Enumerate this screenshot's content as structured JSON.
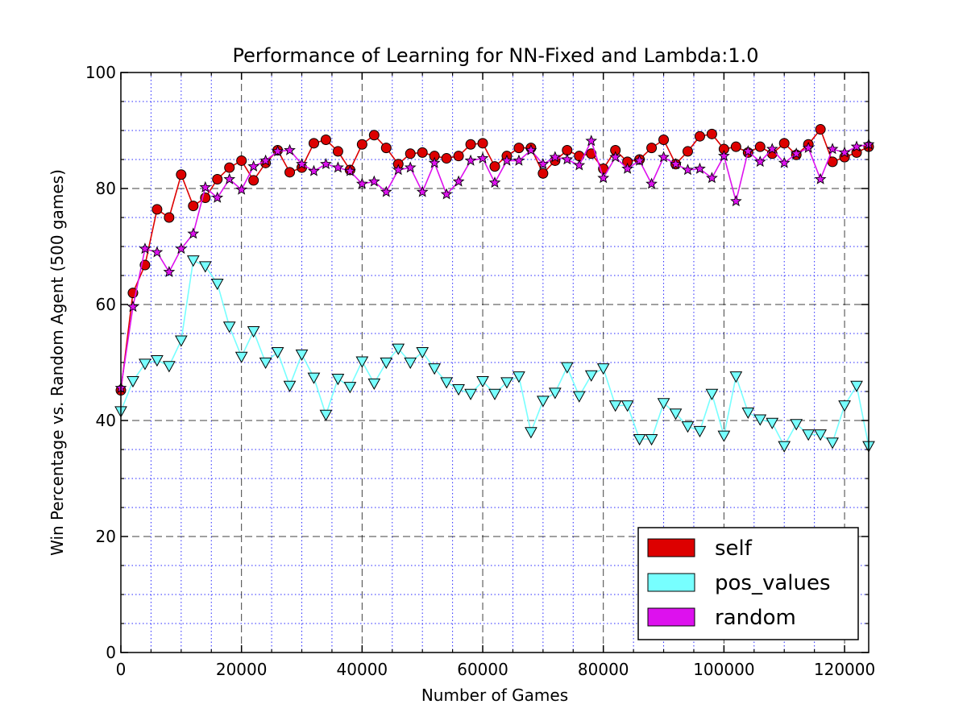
{
  "chart_data": {
    "type": "line",
    "title": "Performance of Learning for NN-Fixed and Lambda:1.0",
    "xlabel": "Number of Games",
    "ylabel": "Win Percentage vs. Random Agent (500 games)",
    "xlim": [
      0,
      124000
    ],
    "ylim": [
      0,
      100
    ],
    "xticks": [
      0,
      20000,
      40000,
      60000,
      80000,
      100000,
      120000
    ],
    "yticks": [
      0,
      20,
      40,
      60,
      80,
      100
    ],
    "xtick_labels": [
      "0",
      "20000",
      "40000",
      "60000",
      "80000",
      "100000",
      "120000"
    ],
    "ytick_labels": [
      "0",
      "20",
      "40",
      "60",
      "80",
      "100"
    ],
    "grid": true,
    "legend_position": "lower-right",
    "x": [
      0,
      2000,
      4000,
      6000,
      8000,
      10000,
      12000,
      14000,
      16000,
      18000,
      20000,
      22000,
      24000,
      26000,
      28000,
      30000,
      32000,
      34000,
      36000,
      38000,
      40000,
      42000,
      44000,
      46000,
      48000,
      50000,
      52000,
      54000,
      56000,
      58000,
      60000,
      62000,
      64000,
      66000,
      68000,
      70000,
      72000,
      74000,
      76000,
      78000,
      80000,
      82000,
      84000,
      86000,
      88000,
      90000,
      92000,
      94000,
      96000,
      98000,
      100000,
      102000,
      104000,
      106000,
      108000,
      110000,
      112000,
      114000,
      116000,
      118000,
      120000,
      122000,
      124000
    ],
    "series": [
      {
        "name": "self",
        "color": "#dd0000",
        "marker": "circle",
        "values": [
          45.2,
          62.0,
          66.8,
          76.4,
          75.0,
          82.4,
          77.0,
          78.4,
          81.6,
          83.6,
          84.8,
          81.4,
          84.4,
          86.6,
          82.8,
          83.6,
          87.8,
          88.4,
          86.4,
          83.2,
          87.6,
          89.2,
          87.0,
          84.2,
          86.0,
          86.2,
          85.6,
          85.2,
          85.6,
          87.6,
          87.8,
          83.8,
          85.6,
          87.0,
          87.0,
          82.6,
          84.8,
          86.6,
          85.6,
          86.0,
          83.4,
          86.6,
          84.6,
          85.0,
          87.0,
          88.4,
          84.2,
          86.4,
          89.0,
          89.4,
          86.8,
          87.2,
          86.2,
          87.2,
          86.0,
          87.8,
          85.8,
          87.6,
          90.2,
          84.6,
          85.4,
          86.2,
          87.2
        ]
      },
      {
        "name": "pos_values",
        "color": "#77ffff",
        "marker": "triangle-down",
        "values": [
          41.6,
          46.8,
          49.8,
          50.4,
          49.4,
          53.8,
          67.6,
          66.6,
          63.6,
          56.2,
          51.0,
          55.4,
          50.0,
          51.8,
          46.0,
          51.4,
          47.4,
          41.0,
          47.2,
          45.8,
          50.2,
          46.4,
          50.0,
          52.4,
          50.0,
          51.8,
          49.0,
          46.6,
          45.4,
          44.6,
          46.8,
          44.6,
          46.6,
          47.6,
          38.0,
          43.4,
          44.8,
          49.2,
          44.2,
          47.8,
          49.0,
          42.6,
          42.6,
          36.8,
          36.8,
          43.0,
          41.2,
          39.0,
          38.2,
          44.6,
          37.4,
          47.6,
          41.4,
          40.2,
          39.6,
          35.6,
          39.4,
          37.6,
          37.6,
          36.2,
          42.6,
          46.0,
          35.6
        ]
      },
      {
        "name": "random",
        "color": "#dd11ee",
        "marker": "star",
        "values": [
          45.6,
          59.6,
          69.6,
          69.0,
          65.6,
          69.6,
          72.2,
          80.2,
          78.4,
          81.6,
          79.8,
          83.8,
          84.8,
          86.4,
          86.6,
          84.2,
          83.0,
          84.2,
          83.6,
          83.0,
          80.8,
          81.2,
          79.4,
          83.2,
          83.6,
          79.4,
          84.4,
          79.0,
          81.2,
          84.8,
          85.2,
          81.0,
          84.8,
          84.8,
          86.6,
          84.2,
          85.4,
          85.0,
          84.0,
          88.2,
          81.8,
          85.4,
          83.4,
          84.8,
          80.8,
          85.4,
          84.2,
          83.2,
          83.4,
          81.8,
          85.6,
          77.8,
          86.4,
          84.6,
          86.8,
          84.4,
          86.0,
          87.0,
          81.6,
          86.8,
          86.2,
          87.2,
          87.6
        ]
      }
    ]
  }
}
